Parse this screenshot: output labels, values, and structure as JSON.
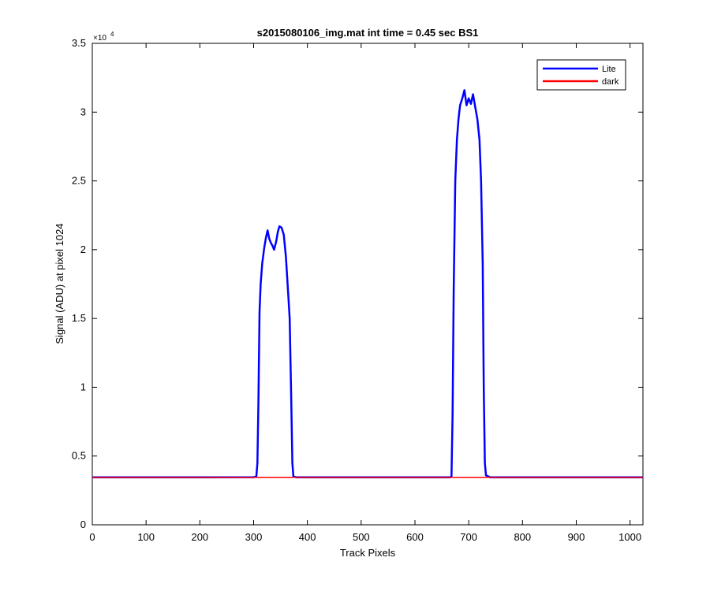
{
  "chart_data": {
    "type": "line",
    "title": "s2015080106_img.mat int time = 0.45 sec   BS1",
    "xlabel": "Track Pixels",
    "ylabel": "Signal (ADU) at pixel 1024",
    "y_exponent_label": "×10",
    "y_exponent_power": "4",
    "xlim": [
      0,
      1024
    ],
    "ylim": [
      0,
      35000
    ],
    "x_ticks": [
      0,
      100,
      200,
      300,
      400,
      500,
      600,
      700,
      800,
      900,
      1000
    ],
    "y_ticks": [
      0,
      5000,
      10000,
      15000,
      20000,
      25000,
      30000,
      35000
    ],
    "x_tick_labels": [
      "0",
      "100",
      "200",
      "300",
      "400",
      "500",
      "600",
      "700",
      "800",
      "900",
      "1000"
    ],
    "y_tick_labels": [
      "0",
      "0.5",
      "1",
      "1.5",
      "2",
      "2.5",
      "3",
      "3.5"
    ],
    "grid": false,
    "legend_position": "top-right",
    "series": [
      {
        "name": "Lite",
        "color": "#0000ff",
        "points": [
          [
            0,
            3450
          ],
          [
            100,
            3450
          ],
          [
            200,
            3450
          ],
          [
            300,
            3460
          ],
          [
            305,
            3500
          ],
          [
            307,
            4500
          ],
          [
            309,
            9000
          ],
          [
            311,
            15500
          ],
          [
            313,
            17500
          ],
          [
            316,
            19000
          ],
          [
            320,
            20200
          ],
          [
            323,
            20900
          ],
          [
            326,
            21400
          ],
          [
            329,
            20800
          ],
          [
            332,
            20500
          ],
          [
            335,
            20300
          ],
          [
            338,
            20000
          ],
          [
            342,
            20600
          ],
          [
            345,
            21300
          ],
          [
            348,
            21700
          ],
          [
            352,
            21600
          ],
          [
            356,
            21100
          ],
          [
            360,
            19500
          ],
          [
            364,
            17000
          ],
          [
            367,
            15000
          ],
          [
            370,
            9000
          ],
          [
            372,
            4500
          ],
          [
            374,
            3500
          ],
          [
            380,
            3450
          ],
          [
            500,
            3450
          ],
          [
            600,
            3450
          ],
          [
            665,
            3450
          ],
          [
            668,
            3500
          ],
          [
            670,
            8000
          ],
          [
            672,
            17000
          ],
          [
            675,
            25000
          ],
          [
            678,
            28000
          ],
          [
            681,
            29500
          ],
          [
            684,
            30500
          ],
          [
            688,
            31000
          ],
          [
            692,
            31600
          ],
          [
            696,
            30500
          ],
          [
            700,
            31000
          ],
          [
            704,
            30600
          ],
          [
            708,
            31300
          ],
          [
            712,
            30400
          ],
          [
            716,
            29500
          ],
          [
            720,
            28000
          ],
          [
            723,
            25000
          ],
          [
            726,
            19000
          ],
          [
            728,
            10000
          ],
          [
            730,
            4500
          ],
          [
            732,
            3600
          ],
          [
            740,
            3450
          ],
          [
            800,
            3450
          ],
          [
            900,
            3450
          ],
          [
            1024,
            3450
          ]
        ]
      },
      {
        "name": "dark",
        "color": "#ff0000",
        "points": [
          [
            0,
            3450
          ],
          [
            1024,
            3450
          ]
        ]
      }
    ]
  }
}
